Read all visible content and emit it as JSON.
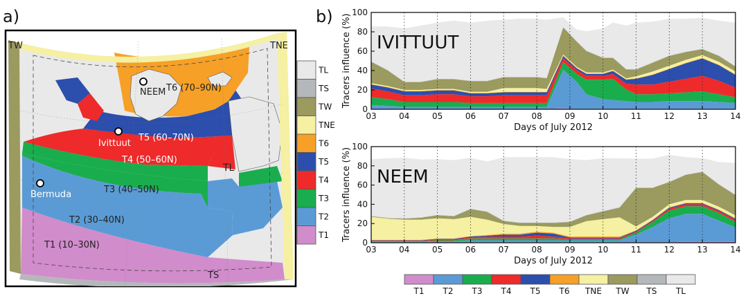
{
  "panel_a_label": "a)",
  "panel_b_label": "b)",
  "map": {
    "legend": [
      {
        "label": "TL",
        "color": "#e9e9e9"
      },
      {
        "label": "TS",
        "color": "#b5b8ba"
      },
      {
        "label": "TW",
        "color": "#9b9a5f"
      },
      {
        "label": "TNE",
        "color": "#f5f0a2"
      },
      {
        "label": "T6",
        "color": "#f6a027"
      },
      {
        "label": "T5",
        "color": "#2c4ead"
      },
      {
        "label": "T4",
        "color": "#ee2a2a"
      },
      {
        "label": "T3",
        "color": "#19ad4e"
      },
      {
        "label": "T2",
        "color": "#5b9bd5"
      },
      {
        "label": "T1",
        "color": "#d18ccc"
      }
    ],
    "region_labels": {
      "tw": "TW",
      "tne": "TNE",
      "ts": "TS",
      "tl": "TL",
      "t6": "T6 (70–90N)",
      "t5": "T5 (60–70N)",
      "t4": "T4 (50–60N)",
      "t3": "T3 (40–50N)",
      "t2": "T2 (30–40N)",
      "t1": "T1 (10–30N)"
    },
    "stations": {
      "neem": "NEEM",
      "ivittuut": "Ivittuut",
      "bermuda": "Bermuda"
    }
  },
  "chart_data": [
    {
      "type": "area",
      "title": "IVITTUUT",
      "xlabel": "Days of July 2012",
      "ylabel": "Tracers influence (%)",
      "xlim": [
        3,
        14
      ],
      "ylim": [
        0,
        100
      ],
      "xticks": [
        "03",
        "04",
        "05",
        "06",
        "07",
        "08",
        "09",
        "10",
        "11",
        "12",
        "13",
        "14"
      ],
      "yticks": [
        "0",
        "20",
        "40",
        "60",
        "80",
        "100"
      ],
      "grid": "x-dotted",
      "x": [
        3,
        3.5,
        4,
        4.5,
        5,
        5.5,
        6,
        6.5,
        7,
        7.5,
        8,
        8.3,
        8.8,
        9.2,
        9.5,
        10,
        10.3,
        10.7,
        11,
        11.5,
        12,
        12.5,
        13,
        13.5,
        14
      ],
      "series": [
        {
          "name": "T1",
          "color": "#d18ccc",
          "values": [
            0.5,
            0.5,
            0.5,
            0.5,
            0.5,
            0.5,
            0.5,
            0.5,
            0.5,
            0.5,
            0.5,
            0.5,
            1,
            0.5,
            0.5,
            0.5,
            0.5,
            0.5,
            0.5,
            0.5,
            0.5,
            0.5,
            0.5,
            0.5,
            0.5
          ]
        },
        {
          "name": "T2",
          "color": "#5b9bd5",
          "values": [
            4,
            3,
            2,
            2,
            2,
            2,
            2,
            2,
            2,
            2,
            2,
            2,
            40,
            28,
            15,
            10,
            9,
            8,
            7,
            7,
            8,
            8,
            8,
            7,
            6
          ]
        },
        {
          "name": "T3",
          "color": "#19ad4e",
          "values": [
            8,
            7,
            5,
            5,
            5,
            5,
            4,
            4,
            4,
            4,
            4,
            4,
            8,
            8,
            15,
            20,
            22,
            12,
            8,
            8,
            8,
            9,
            10,
            8,
            6
          ]
        },
        {
          "name": "T4",
          "color": "#ee2a2a",
          "values": [
            9,
            8,
            7,
            7,
            8,
            8,
            7,
            7,
            8,
            8,
            8,
            8,
            4,
            4,
            4,
            4,
            5,
            6,
            10,
            10,
            12,
            14,
            16,
            14,
            10
          ]
        },
        {
          "name": "T5",
          "color": "#2c4ead",
          "values": [
            4,
            4,
            4,
            4,
            4,
            4,
            3,
            3,
            3,
            3,
            3,
            3,
            2,
            2,
            2,
            2,
            3,
            4,
            6,
            10,
            13,
            16,
            18,
            16,
            13
          ]
        },
        {
          "name": "T6",
          "color": "#f6a027",
          "values": [
            0.5,
            0.5,
            0.5,
            0.5,
            0.5,
            0.5,
            0.5,
            0.5,
            0.5,
            0.5,
            0.5,
            0.5,
            0.5,
            0.5,
            0.5,
            0.5,
            0.5,
            0.5,
            0.5,
            0.5,
            0.5,
            0.5,
            0.5,
            0.5,
            0.5
          ]
        },
        {
          "name": "TNE",
          "color": "#f5f0a2",
          "values": [
            1,
            1,
            1,
            1,
            1,
            1,
            1,
            1,
            4,
            4,
            4,
            3,
            1,
            1,
            1,
            1,
            1,
            1,
            2,
            3,
            3,
            3,
            3,
            3,
            3
          ]
        },
        {
          "name": "TW",
          "color": "#9b9a5f",
          "values": [
            22,
            16,
            8,
            8,
            10,
            10,
            11,
            11,
            11,
            11,
            11,
            11,
            28,
            26,
            22,
            15,
            12,
            9,
            7,
            9,
            10,
            8,
            6,
            6,
            5
          ]
        },
        {
          "name": "TS",
          "color": "#b5b8ba",
          "values": [
            0.5,
            0.5,
            0.5,
            0.5,
            0.5,
            0.5,
            0.5,
            0.5,
            0.5,
            0.5,
            0.5,
            0.5,
            0.5,
            0.5,
            0.5,
            0.5,
            0.5,
            0.5,
            0.5,
            0.5,
            0.5,
            0.5,
            0.5,
            0.5,
            0.5
          ]
        },
        {
          "name": "TL",
          "color": "#e9e9e9",
          "values": [
            36,
            45,
            55,
            58,
            58,
            60,
            60,
            62,
            59,
            60,
            60,
            60,
            10,
            12,
            20,
            30,
            36,
            45,
            48,
            42,
            38,
            34,
            32,
            36,
            45
          ]
        }
      ]
    },
    {
      "type": "area",
      "title": "NEEM",
      "xlabel": "Days of July 2012",
      "ylabel": "Tracers influence (%)",
      "xlim": [
        3,
        14
      ],
      "ylim": [
        0,
        100
      ],
      "xticks": [
        "03",
        "04",
        "05",
        "06",
        "07",
        "08",
        "09",
        "10",
        "11",
        "12",
        "13",
        "14"
      ],
      "yticks": [
        "0",
        "20",
        "40",
        "60",
        "80",
        "100"
      ],
      "grid": "x-dotted",
      "x": [
        3,
        3.5,
        4,
        4.5,
        5,
        5.5,
        6,
        6.5,
        7,
        7.5,
        8,
        8.5,
        9,
        9.5,
        10,
        10.5,
        11,
        11.5,
        12,
        12.5,
        13,
        13.5,
        14
      ],
      "series": [
        {
          "name": "T1",
          "color": "#d18ccc",
          "values": [
            0.5,
            0.5,
            0.5,
            0.5,
            0.5,
            0.5,
            0.5,
            0.5,
            0.5,
            0.5,
            0.5,
            0.5,
            0.5,
            0.5,
            0.5,
            0.5,
            0.5,
            0.5,
            0.5,
            1,
            1,
            1,
            1
          ]
        },
        {
          "name": "T2",
          "color": "#5b9bd5",
          "values": [
            0.5,
            0.5,
            0.5,
            0.5,
            1,
            1,
            2,
            2,
            2,
            2,
            2,
            2,
            2,
            2,
            2,
            2,
            8,
            16,
            25,
            29,
            29,
            22,
            15
          ]
        },
        {
          "name": "T3",
          "color": "#19ad4e",
          "values": [
            0.5,
            0.5,
            0.5,
            0.5,
            1,
            1,
            2,
            2,
            2,
            2,
            2,
            2,
            1,
            1,
            1,
            1,
            2,
            5,
            8,
            8,
            8,
            8,
            6
          ]
        },
        {
          "name": "T4",
          "color": "#ee2a2a",
          "values": [
            0.5,
            0.5,
            0.5,
            0.5,
            1,
            1,
            1,
            2,
            2,
            2,
            3,
            2,
            1,
            1,
            1,
            1,
            1,
            1,
            2,
            2,
            2,
            2,
            2
          ]
        },
        {
          "name": "T5",
          "color": "#2c4ead",
          "values": [
            0.5,
            0.5,
            0.5,
            0.5,
            0.5,
            0.5,
            1,
            1,
            2,
            2,
            3,
            3,
            1,
            1,
            1,
            1,
            1,
            1,
            1,
            1,
            1,
            1,
            1
          ]
        },
        {
          "name": "T6",
          "color": "#f6a027",
          "values": [
            0.5,
            0.5,
            0.5,
            0.5,
            0.5,
            0.5,
            0.5,
            0.5,
            1,
            1,
            1,
            1,
            1,
            1,
            1,
            1,
            0.5,
            0.5,
            0.5,
            0.5,
            0.5,
            0.5,
            0.5
          ]
        },
        {
          "name": "TNE",
          "color": "#f5f0a2",
          "values": [
            24,
            22,
            21,
            21,
            21,
            20,
            20,
            16,
            10,
            8,
            6,
            6,
            10,
            16,
            18,
            20,
            4,
            3,
            3,
            3,
            3,
            3,
            3
          ]
        },
        {
          "name": "TW",
          "color": "#9b9a5f",
          "values": [
            0.5,
            0.5,
            1,
            2,
            3,
            3,
            8,
            8,
            3,
            3,
            3,
            4,
            5,
            6,
            8,
            10,
            40,
            30,
            23,
            26,
            29,
            23,
            21
          ]
        },
        {
          "name": "TS",
          "color": "#b5b8ba",
          "values": [
            0.5,
            0.5,
            0.5,
            0.5,
            0.5,
            0.5,
            0.5,
            0.5,
            0.5,
            0.5,
            0.5,
            0.5,
            0.5,
            0.5,
            0.5,
            0.5,
            0.5,
            0.5,
            0.5,
            0.5,
            0.5,
            0.5,
            0.5
          ]
        },
        {
          "name": "TL",
          "color": "#e9e9e9",
          "values": [
            59,
            62,
            63,
            60,
            58,
            58,
            53,
            52,
            66,
            68,
            68,
            68,
            65,
            57,
            55,
            51,
            30,
            30,
            28,
            18,
            14,
            23,
            33
          ]
        }
      ]
    }
  ],
  "bottom_legend": [
    {
      "label": "T1",
      "color": "#d18ccc"
    },
    {
      "label": "T2",
      "color": "#5b9bd5"
    },
    {
      "label": "T3",
      "color": "#19ad4e"
    },
    {
      "label": "T4",
      "color": "#ee2a2a"
    },
    {
      "label": "T5",
      "color": "#2c4ead"
    },
    {
      "label": "T6",
      "color": "#f6a027"
    },
    {
      "label": "TNE",
      "color": "#f5f0a2"
    },
    {
      "label": "TW",
      "color": "#9b9a5f"
    },
    {
      "label": "TS",
      "color": "#b5b8ba"
    },
    {
      "label": "TL",
      "color": "#e9e9e9"
    }
  ]
}
